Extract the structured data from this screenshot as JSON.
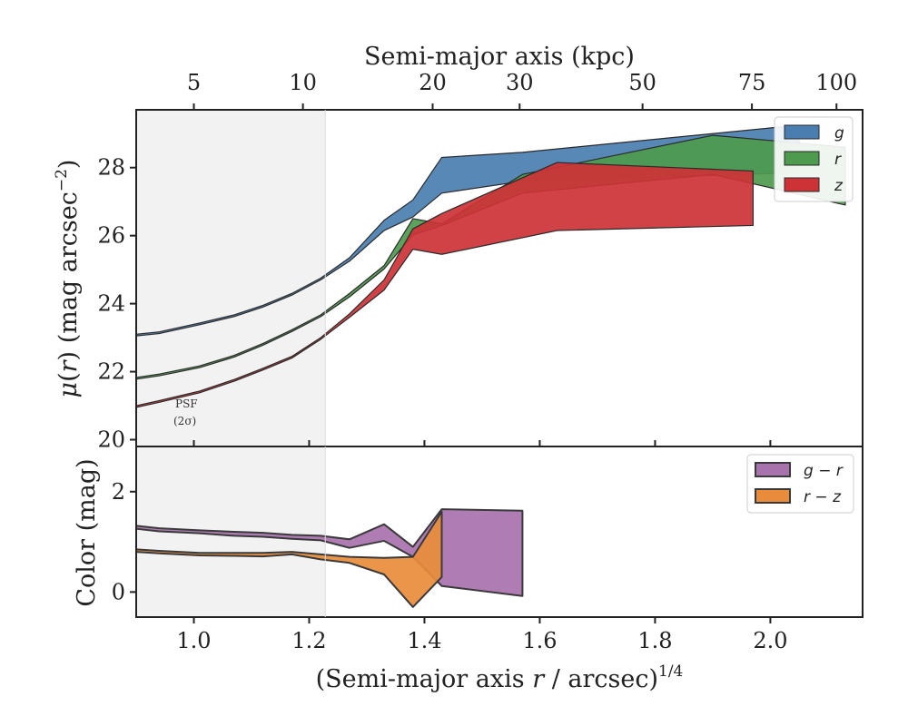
{
  "chart_data": [
    {
      "type": "area",
      "panel": "surface-brightness",
      "ylabel_parts": {
        "mu": "μ",
        "open": "(",
        "r": "r",
        "close": ")",
        "unit": " (mag arcsec",
        "sup": "−2",
        "end": ")"
      },
      "top_xlabel": "Semi-major axis (kpc)",
      "top_ticks": [
        {
          "label": "5",
          "value": 5
        },
        {
          "label": "10",
          "value": 10
        },
        {
          "label": "20",
          "value": 20
        },
        {
          "label": "30",
          "value": 30
        },
        {
          "label": "50",
          "value": 50
        },
        {
          "label": "75",
          "value": 75
        },
        {
          "label": "100",
          "value": 100
        }
      ],
      "kpc_per_arcsec": 5.0,
      "xlim": [
        0.9,
        2.16
      ],
      "ylim": [
        29.7,
        19.8
      ],
      "yticks": [
        20,
        22,
        24,
        26,
        28
      ],
      "psf_label": "PSF",
      "psf_sub": "(2σ)",
      "psf_x_max": 1.228,
      "legend": "top-right",
      "series": [
        {
          "name": "g",
          "color": "#4a7eb0",
          "x": [
            0.9,
            0.94,
            1.01,
            1.07,
            1.12,
            1.17,
            1.22,
            1.27,
            1.33,
            1.38,
            1.43,
            1.57,
            2.05
          ],
          "y_upper": [
            23.05,
            23.12,
            23.38,
            23.62,
            23.9,
            24.25,
            24.7,
            25.25,
            26.15,
            26.55,
            27.25,
            27.6,
            27.85
          ],
          "y_lower": [
            23.1,
            23.17,
            23.43,
            23.67,
            23.95,
            24.3,
            24.75,
            25.35,
            26.45,
            27.05,
            28.3,
            28.45,
            29.25
          ]
        },
        {
          "name": "r",
          "color": "#4e9a4e",
          "x": [
            0.9,
            0.94,
            1.01,
            1.07,
            1.12,
            1.17,
            1.22,
            1.27,
            1.33,
            1.38,
            1.43,
            1.57,
            1.9,
            2.13
          ],
          "y_upper": [
            21.78,
            21.88,
            22.12,
            22.43,
            22.78,
            23.18,
            23.62,
            24.2,
            25.02,
            26.02,
            26.3,
            27.25,
            27.8,
            26.9
          ],
          "y_lower": [
            21.83,
            21.93,
            22.17,
            22.48,
            22.83,
            23.23,
            23.67,
            24.3,
            25.12,
            26.5,
            26.35,
            27.8,
            28.95,
            28.6
          ]
        },
        {
          "name": "z",
          "color": "#cd3236",
          "x": [
            0.9,
            0.94,
            1.01,
            1.07,
            1.12,
            1.17,
            1.22,
            1.27,
            1.33,
            1.38,
            1.43,
            1.63,
            1.97
          ],
          "y_upper": [
            20.95,
            21.1,
            21.38,
            21.72,
            22.05,
            22.4,
            22.95,
            23.6,
            24.4,
            25.6,
            25.45,
            26.15,
            26.3
          ],
          "y_lower": [
            21.0,
            21.15,
            21.43,
            21.77,
            22.1,
            22.45,
            23.0,
            23.7,
            24.7,
            26.2,
            26.65,
            28.15,
            27.9
          ]
        }
      ]
    },
    {
      "type": "area",
      "panel": "color",
      "ylabel": "Color (mag)",
      "xlabel_parts": {
        "open": "(Semi-major axis ",
        "r": "r",
        "mid": " / arcsec)",
        "sup": "1/4"
      },
      "xlim": [
        0.9,
        2.16
      ],
      "ylim": [
        -0.5,
        2.9
      ],
      "yticks": [
        0,
        2
      ],
      "xticks": [
        1.0,
        1.2,
        1.4,
        1.6,
        1.8,
        2.0
      ],
      "xtick_labels": [
        "1.0",
        "1.2",
        "1.4",
        "1.6",
        "1.8",
        "2.0"
      ],
      "legend": "top-right",
      "series": [
        {
          "name": "g − r",
          "name_parts": [
            "g",
            " − ",
            "r"
          ],
          "color": "#a872ad",
          "x": [
            0.9,
            0.94,
            1.01,
            1.07,
            1.12,
            1.17,
            1.22,
            1.27,
            1.33,
            1.38,
            1.43,
            1.57
          ],
          "y_upper": [
            1.32,
            1.27,
            1.23,
            1.2,
            1.18,
            1.14,
            1.12,
            1.05,
            1.35,
            0.9,
            1.65,
            1.62
          ],
          "y_lower": [
            1.26,
            1.21,
            1.17,
            1.12,
            1.1,
            1.06,
            1.03,
            0.88,
            1.02,
            0.7,
            0.12,
            -0.08
          ]
        },
        {
          "name": "r − z",
          "name_parts": [
            "r",
            " − ",
            "z"
          ],
          "color": "#e88c3b",
          "x": [
            0.9,
            0.94,
            1.01,
            1.07,
            1.12,
            1.17,
            1.22,
            1.27,
            1.33,
            1.38,
            1.43
          ],
          "y_upper": [
            0.85,
            0.82,
            0.78,
            0.78,
            0.78,
            0.8,
            0.75,
            0.7,
            0.68,
            0.7,
            1.6
          ],
          "y_lower": [
            0.8,
            0.77,
            0.73,
            0.72,
            0.71,
            0.75,
            0.65,
            0.58,
            0.35,
            -0.3,
            0.3
          ]
        }
      ]
    }
  ]
}
